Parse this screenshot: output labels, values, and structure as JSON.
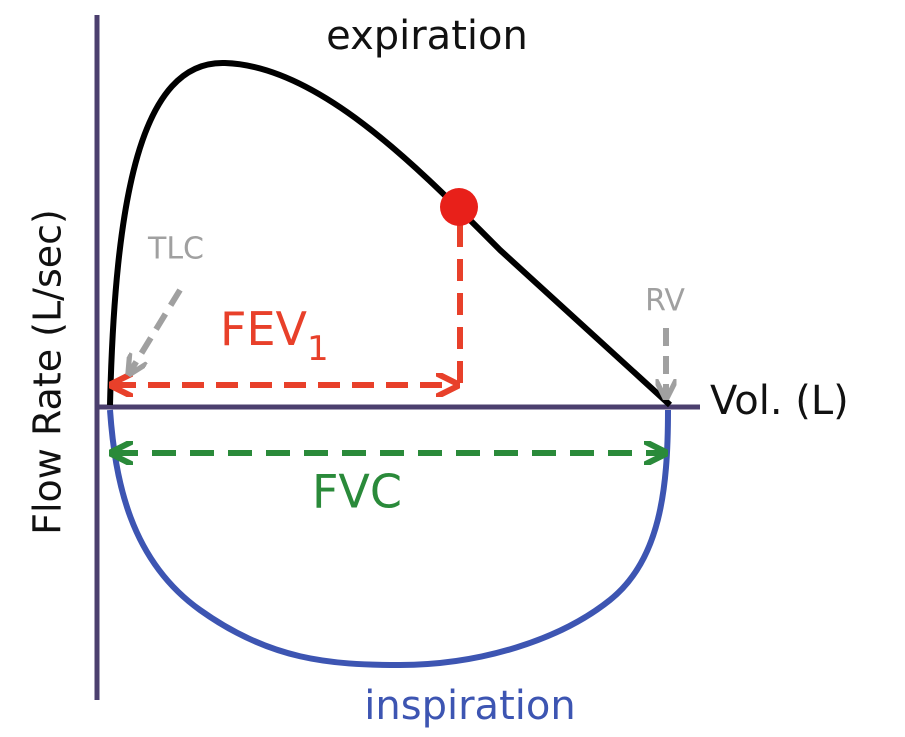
{
  "labels": {
    "top": "expiration",
    "y_axis": "Flow Rate (L/sec)",
    "tlc": "TLC",
    "fev": {
      "text": "FEV",
      "subscript": "1"
    },
    "rv": "RV",
    "x_axis": "Vol. (L)",
    "fvc": "FVC",
    "bottom": "inspiration"
  }
}
